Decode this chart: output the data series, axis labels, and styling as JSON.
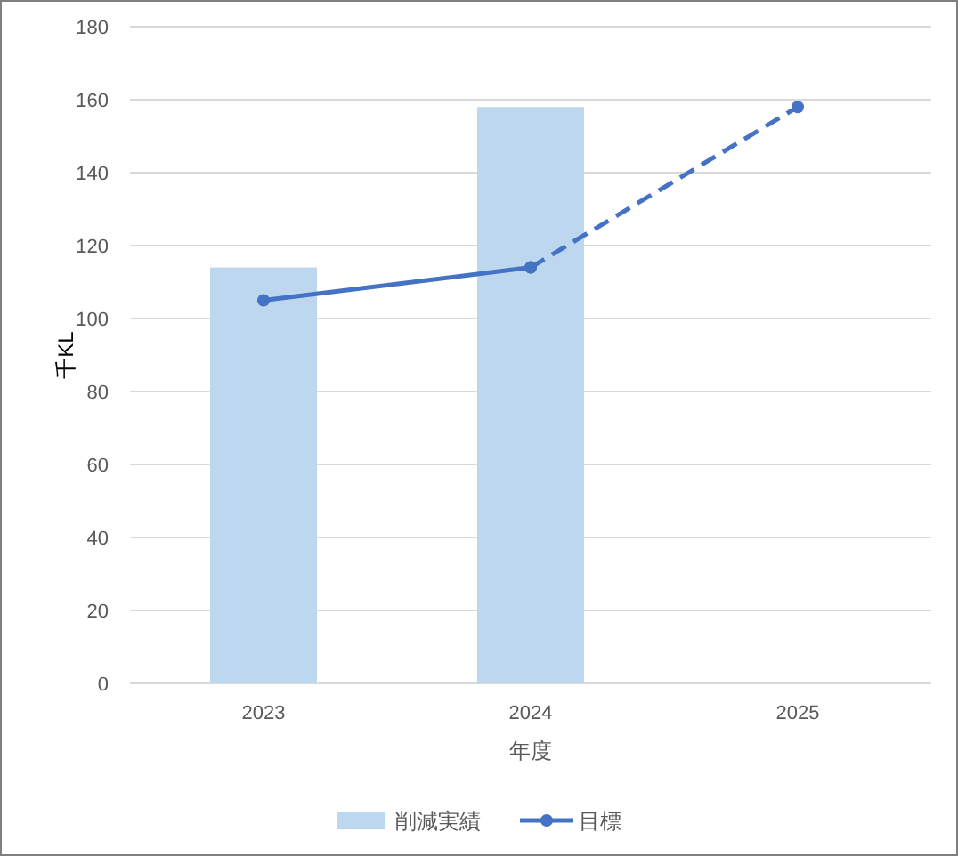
{
  "chart_data": {
    "type": "bar",
    "categories": [
      "2023",
      "2024",
      "2025"
    ],
    "xlabel": "年度",
    "ylabel": "千KL",
    "ylim": [
      0,
      180
    ],
    "yticks": [
      0,
      20,
      40,
      60,
      80,
      100,
      120,
      140,
      160,
      180
    ],
    "grid": "y",
    "legend": "bottom",
    "marker": "circle",
    "series": [
      {
        "name": "削減実績",
        "color": "#bdd7ee",
        "values": [
          114,
          158,
          null
        ]
      },
      {
        "name": "目標",
        "type": "line",
        "color": "#4472c4",
        "line_style": "solid",
        "values": [
          105,
          114,
          null
        ]
      },
      {
        "type": "line",
        "color": "#4472c4",
        "line_style": "dashed",
        "values": [
          null,
          114,
          158
        ]
      }
    ]
  }
}
